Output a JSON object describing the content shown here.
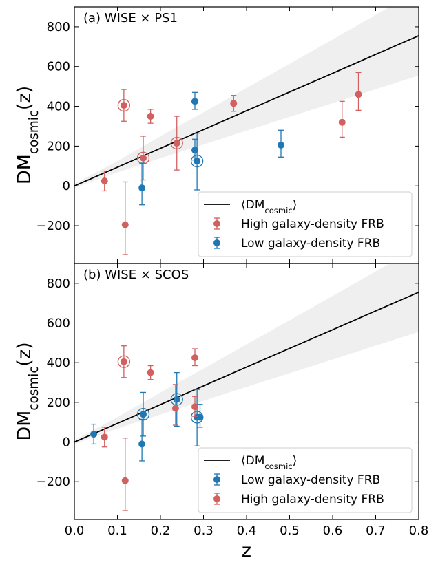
{
  "chart_data": [
    {
      "type": "scatter",
      "panel_label": "(a) WISE × PS1",
      "ylabel": {
        "text": "DM",
        "sub": "cosmic",
        "after": "(z)"
      },
      "xlim": [
        0,
        0.8
      ],
      "ylim": [
        -390,
        900
      ],
      "xticks": [
        0,
        0.1,
        0.2,
        0.3,
        0.4,
        0.5,
        0.6,
        0.7,
        0.8
      ],
      "yticks": [
        -200,
        0,
        200,
        400,
        600,
        800
      ],
      "yticks_labels": [
        "−200",
        "0",
        "200",
        "400",
        "600",
        "800"
      ],
      "legend": "lower right",
      "line": {
        "name": {
          "text": "⟨DM",
          "sub": "cosmic",
          "after": "⟩"
        },
        "color": "#000000",
        "x": [
          0,
          0.1,
          0.2,
          0.3,
          0.4,
          0.5,
          0.6,
          0.7,
          0.8
        ],
        "y": [
          0,
          94,
          189,
          283,
          378,
          472,
          566,
          661,
          755
        ],
        "band_upper": [
          10,
          125,
          250,
          370,
          492,
          614,
          736,
          860,
          982
        ],
        "band_lower": [
          -10,
          68,
          139,
          208,
          278,
          347,
          416,
          486,
          555
        ],
        "band_color": "#efefef"
      },
      "series": [
        {
          "name": "High galaxy-density FRB",
          "color": "#d1605e",
          "x": [
            0.07,
            0.115,
            0.118,
            0.16,
            0.177,
            0.238,
            0.37,
            0.622,
            0.66
          ],
          "values": [
            25,
            405,
            -195,
            140,
            350,
            215,
            415,
            320,
            460
          ],
          "yerr": [
            [
              50,
              50
            ],
            [
              80,
              80
            ],
            [
              150,
              215
            ],
            [
              110,
              110
            ],
            [
              35,
              35
            ],
            [
              135,
              135
            ],
            [
              40,
              40
            ],
            [
              75,
              105
            ],
            [
              80,
              110
            ]
          ],
          "circled": [
            false,
            true,
            false,
            true,
            false,
            true,
            false,
            false,
            false
          ]
        },
        {
          "name": "Low galaxy-density FRB",
          "color": "#1f77b4",
          "x": [
            0.157,
            0.28,
            0.28,
            0.285,
            0.48
          ],
          "values": [
            -10,
            425,
            180,
            125,
            205
          ],
          "yerr": [
            [
              85,
              125
            ],
            [
              40,
              45
            ],
            [
              50,
              55
            ],
            [
              145,
              140
            ],
            [
              60,
              75
            ]
          ],
          "circled": [
            false,
            false,
            false,
            true,
            false
          ]
        }
      ]
    },
    {
      "type": "scatter",
      "panel_label": "(b) WISE × SCOS",
      "ylabel": {
        "text": "DM",
        "sub": "cosmic",
        "after": "(z)"
      },
      "xlabel": "z",
      "xlim": [
        0,
        0.8
      ],
      "ylim": [
        -390,
        900
      ],
      "xticks": [
        0,
        0.1,
        0.2,
        0.3,
        0.4,
        0.5,
        0.6,
        0.7,
        0.8
      ],
      "xticks_labels": [
        "0.0",
        "0.1",
        "0.2",
        "0.3",
        "0.4",
        "0.5",
        "0.6",
        "0.7",
        "0.8"
      ],
      "yticks": [
        -200,
        0,
        200,
        400,
        600,
        800
      ],
      "yticks_labels": [
        "−200",
        "0",
        "200",
        "400",
        "600",
        "800"
      ],
      "legend": "lower right",
      "line": {
        "name": {
          "text": "⟨DM",
          "sub": "cosmic",
          "after": "⟩"
        },
        "color": "#000000",
        "x": [
          0,
          0.1,
          0.2,
          0.3,
          0.4,
          0.5,
          0.6,
          0.7,
          0.8
        ],
        "y": [
          0,
          94,
          189,
          283,
          378,
          472,
          566,
          661,
          755
        ],
        "band_upper": [
          10,
          125,
          250,
          370,
          492,
          614,
          736,
          860,
          982
        ],
        "band_lower": [
          -10,
          68,
          139,
          208,
          278,
          347,
          416,
          486,
          555
        ],
        "band_color": "#efefef"
      },
      "series": [
        {
          "name": "Low galaxy-density FRB",
          "color": "#1f77b4",
          "x": [
            0.045,
            0.157,
            0.16,
            0.238,
            0.285,
            0.292
          ],
          "values": [
            40,
            -10,
            140,
            215,
            125,
            125
          ],
          "yerr": [
            [
              50,
              50
            ],
            [
              85,
              125
            ],
            [
              110,
              110
            ],
            [
              135,
              135
            ],
            [
              145,
              140
            ],
            [
              50,
              65
            ]
          ],
          "circled": [
            false,
            false,
            true,
            true,
            true,
            false
          ]
        },
        {
          "name": "High galaxy-density FRB",
          "color": "#d1605e",
          "x": [
            0.07,
            0.115,
            0.118,
            0.177,
            0.235,
            0.28,
            0.28
          ],
          "values": [
            25,
            405,
            -195,
            350,
            170,
            425,
            178
          ],
          "yerr": [
            [
              50,
              50
            ],
            [
              80,
              80
            ],
            [
              150,
              215
            ],
            [
              35,
              35
            ],
            [
              85,
              120
            ],
            [
              40,
              45
            ],
            [
              48,
              52
            ]
          ],
          "circled": [
            false,
            true,
            false,
            false,
            false,
            false,
            false
          ]
        }
      ]
    }
  ]
}
